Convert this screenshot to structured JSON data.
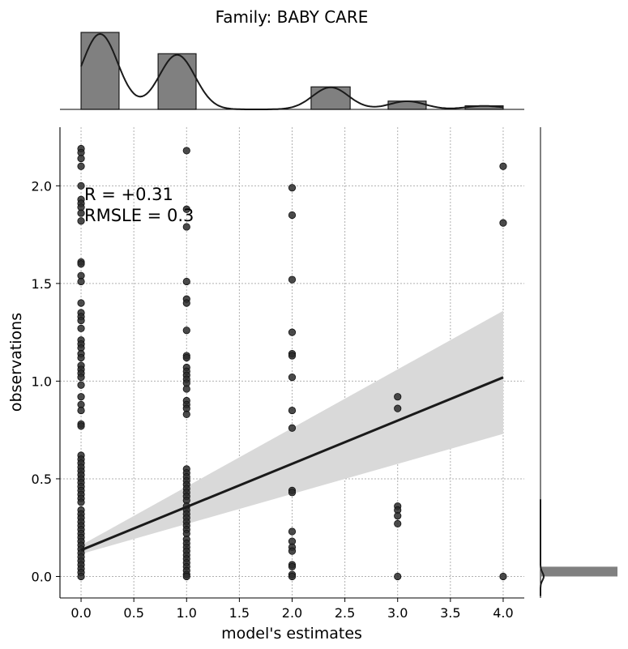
{
  "chart_data": {
    "type": "scatter",
    "title": "Family: BABY CARE",
    "xlabel": "model's estimates",
    "ylabel": "observations",
    "xlim": [
      -0.2,
      4.2
    ],
    "ylim": [
      -0.11,
      2.3
    ],
    "xticks": [
      0.0,
      0.5,
      1.0,
      1.5,
      2.0,
      2.5,
      3.0,
      3.5,
      4.0
    ],
    "xtick_labels": [
      "0.0",
      "0.5",
      "1.0",
      "1.5",
      "2.0",
      "2.5",
      "3.0",
      "3.5",
      "4.0"
    ],
    "yticks": [
      0.0,
      0.5,
      1.0,
      1.5,
      2.0
    ],
    "ytick_labels": [
      "0.0",
      "0.5",
      "1.0",
      "1.5",
      "2.0"
    ],
    "grid": true,
    "annotations": [
      "R = +0.31",
      "RMSLE =  0.3"
    ],
    "colors": {
      "points": "#2b2b2b",
      "line": "#1a1a1a",
      "band": "#d9d9d9",
      "hist": "#808080",
      "grid": "#b0b0b0"
    },
    "points": {
      "x0": [
        2.19,
        2.17,
        2.14,
        2.1,
        2.0,
        1.93,
        1.91,
        1.89,
        1.86,
        1.82,
        1.61,
        1.6,
        1.54,
        1.51,
        1.4,
        1.35,
        1.33,
        1.31,
        1.27,
        1.21,
        1.19,
        1.17,
        1.14,
        1.12,
        1.08,
        1.06,
        1.04,
        1.02,
        0.98,
        0.92,
        0.88,
        0.85,
        0.78,
        0.77,
        0.62,
        0.6,
        0.58,
        0.56,
        0.54,
        0.52,
        0.5,
        0.48,
        0.46,
        0.44,
        0.42,
        0.4,
        0.38,
        0.34,
        0.32,
        0.3,
        0.28,
        0.26,
        0.24,
        0.22,
        0.2,
        0.18,
        0.16,
        0.14,
        0.12,
        0.1,
        0.08,
        0.06,
        0.04,
        0.02,
        0.0
      ],
      "x1": [
        2.18,
        1.88,
        1.79,
        1.51,
        1.42,
        1.4,
        1.26,
        1.13,
        1.12,
        1.07,
        1.05,
        1.03,
        1.01,
        0.99,
        0.96,
        0.9,
        0.88,
        0.86,
        0.83,
        0.55,
        0.53,
        0.51,
        0.49,
        0.47,
        0.45,
        0.43,
        0.41,
        0.39,
        0.36,
        0.34,
        0.32,
        0.3,
        0.28,
        0.26,
        0.24,
        0.22,
        0.19,
        0.17,
        0.15,
        0.13,
        0.11,
        0.09,
        0.07,
        0.05,
        0.03,
        0.01,
        0.0
      ],
      "x2": [
        1.99,
        1.85,
        1.52,
        1.25,
        1.14,
        1.13,
        1.02,
        0.85,
        0.76,
        0.44,
        0.43,
        0.23,
        0.18,
        0.15,
        0.13,
        0.06,
        0.05,
        0.01,
        0.0
      ],
      "x3": [
        0.92,
        0.86,
        0.36,
        0.34,
        0.31,
        0.27,
        0.0
      ],
      "x4": [
        2.1,
        1.81,
        0.0
      ]
    },
    "regression": {
      "intercept": 0.135,
      "slope": 0.221,
      "ci_low_at_0": 0.115,
      "ci_high_at_0": 0.16,
      "ci_low_at_4": 0.73,
      "ci_high_at_4": 1.36
    },
    "x_marginal": {
      "bins": [
        0.0,
        0.36,
        0.73,
        1.09,
        1.45,
        1.82,
        2.18,
        2.55,
        2.91,
        3.27,
        3.64,
        4.0
      ],
      "counts": [
        65,
        0,
        47,
        0,
        0,
        0,
        19,
        0,
        7,
        0,
        3
      ]
    },
    "y_marginal": {
      "bins": [
        0.0,
        0.05
      ],
      "counts": [
        1
      ]
    }
  }
}
